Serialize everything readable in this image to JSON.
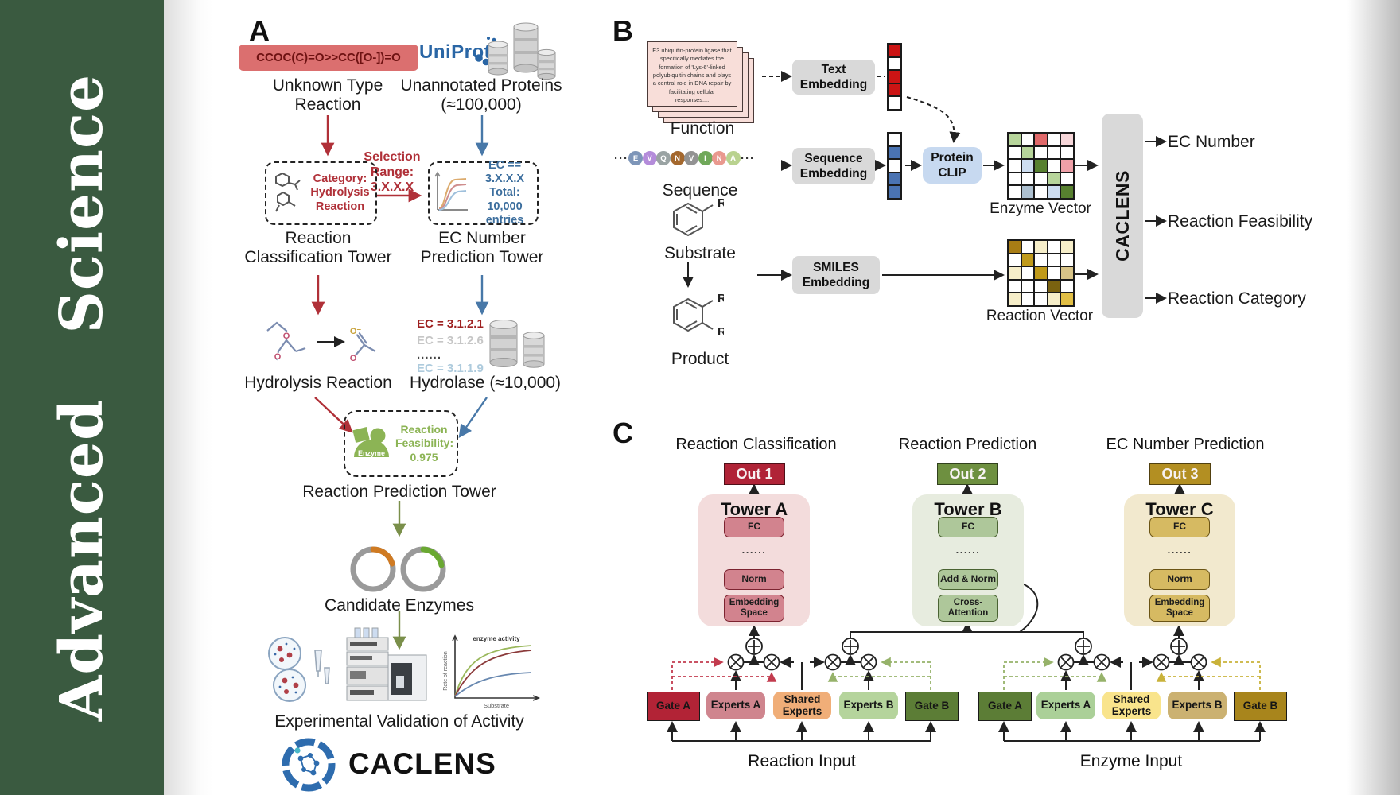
{
  "sidebar": {
    "journal": "Advanced Science"
  },
  "a": {
    "panel_label": "A",
    "smiles": "CCOC(C)=O>>CC([O-])=O",
    "unknown": "Unknown Type Reaction",
    "uniprot": "UniProt",
    "unannotated": "Unannotated Proteins (≈100,000)",
    "selection": "Selection Range: 3.X.X.X",
    "category": "Category: Hydrolysis Reaction",
    "ec_box": "EC == 3.X.X.X Total: 10,000 entries",
    "classification_tower": "Reaction Classification Tower",
    "ec_tower": "EC Number Prediction Tower",
    "ec_list_1": "EC = 3.1.2.1",
    "ec_list_2": "EC = 3.1.2.6",
    "ec_list_dots": "......",
    "ec_list_3": "EC = 3.1.1.9",
    "hydrolysis": "Hydrolysis Reaction",
    "hydrolase": "Hydrolase (≈10,000)",
    "enzyme_label": "Enzyme",
    "feasibility": "Reaction Feasibility: 0.975",
    "prediction_tower": "Reaction Prediction Tower",
    "candidates": "Candidate Enzymes",
    "validation": "Experimental Validation of Activity",
    "plot": {
      "ylabel": "Rate of reaction",
      "xlabel": "Substrate",
      "annotation": "enzyme activity"
    },
    "logo": "CACLENS"
  },
  "b": {
    "panel_label": "B",
    "function_text": "E3 ubiquitin-protein ligase that specifically mediates the formation of 'Lys-6'-linked polyubiquitin chains and plays a central role in DNA repair by facilitating cellular responses....",
    "function": "Function",
    "seq_letters": [
      "E",
      "V",
      "Q",
      "N",
      "V",
      "I",
      "N",
      "A"
    ],
    "seq_colors": [
      "#7d95b8",
      "#b48cda",
      "#9aa3a3",
      "#a4682e",
      "#939393",
      "#70a85a",
      "#e9998f",
      "#b9d28f"
    ],
    "dots": "···",
    "sequence": "Sequence",
    "substrate": "Substrate",
    "product": "Product",
    "r_label": "R",
    "text_embedding": "Text Embedding",
    "sequence_embedding": "Sequence Embedding",
    "smiles_embedding": "SMILES Embedding",
    "protein_clip": "Protein CLIP",
    "enzyme_vector": "Enzyme Vector",
    "reaction_vector": "Reaction Vector",
    "caclens": "CACLENS",
    "out_ec": "EC Number",
    "out_feasibility": "Reaction Feasibility",
    "out_category": "Reaction Category",
    "palette": {
      "w": "#ffffff",
      "r": "#cc1414",
      "b": "#4a73b2",
      "lg": "#b7d59b",
      "rd": "#e0696a",
      "lp": "#f6d6d9",
      "lb": "#cdddf0",
      "dg": "#57802f",
      "pk": "#efa0a8",
      "gb": "#adc0d0",
      "dgo": "#a87d15",
      "go": "#c09a1a",
      "cr": "#f6eec9",
      "tn": "#d8c488",
      "ol": "#7a6210",
      "yl": "#e2bf45"
    },
    "text_vector_cells": [
      "r",
      "w",
      "r",
      "r",
      "w"
    ],
    "seq_vector_cells": [
      "w",
      "b",
      "w",
      "b",
      "b"
    ],
    "enzyme_vector_cells": [
      [
        "lg",
        "w",
        "rd",
        "w",
        "lp"
      ],
      [
        "w",
        "lg",
        "w",
        "w",
        "w"
      ],
      [
        "w",
        "lb",
        "dg",
        "w",
        "pk"
      ],
      [
        "w",
        "w",
        "w",
        "lg",
        "w"
      ],
      [
        "w",
        "gb",
        "w",
        "lb",
        "dg"
      ]
    ],
    "reaction_vector_cells": [
      [
        "dgo",
        "w",
        "cr",
        "w",
        "cr"
      ],
      [
        "w",
        "go",
        "w",
        "w",
        "w"
      ],
      [
        "cr",
        "w",
        "go",
        "w",
        "tn"
      ],
      [
        "w",
        "w",
        "w",
        "ol",
        "w"
      ],
      [
        "cr",
        "w",
        "w",
        "cr",
        "yl"
      ]
    ]
  },
  "c": {
    "panel_label": "C",
    "titles": [
      "Reaction Classification",
      "Reaction Prediction",
      "EC Number Prediction"
    ],
    "outs": [
      "Out 1",
      "Out 2",
      "Out 3"
    ],
    "out_colors": [
      "#b02337",
      "#6e9040",
      "#b38f22"
    ],
    "towers": [
      {
        "name": "Tower A",
        "panel": "#f3dcdc",
        "box": "#d2838e",
        "border": "#7c2330",
        "l1": "FC",
        "dots": "......",
        "l2": "Norm",
        "l3": "Embedding Space"
      },
      {
        "name": "Tower B",
        "panel": "#e7ecdf",
        "box": "#aec79a",
        "border": "#4a6332",
        "l1": "FC",
        "dots": "......",
        "l2": "Add & Norm",
        "l3": "Cross- Attention"
      },
      {
        "name": "Tower C",
        "panel": "#f2e9ce",
        "box": "#d6ba62",
        "border": "#6b5414",
        "l1": "FC",
        "dots": "......",
        "l2": "Norm",
        "l3": "Embedding Space"
      }
    ],
    "groups": [
      {
        "input": "Reaction Input",
        "boxes": [
          "Gate A",
          "Experts A",
          "Shared Experts",
          "Experts B",
          "Gate B"
        ],
        "colors": [
          "#b22336",
          "#cf858e",
          "#f0ae78",
          "#b5d49c",
          "#5c7d36"
        ]
      },
      {
        "input": "Enzyme Input",
        "boxes": [
          "Gate A",
          "Experts A",
          "Shared Experts",
          "Experts B",
          "Gate B"
        ],
        "colors": [
          "#5c7d36",
          "#abd098",
          "#f9e48c",
          "#cbb171",
          "#a8851c"
        ]
      }
    ]
  }
}
